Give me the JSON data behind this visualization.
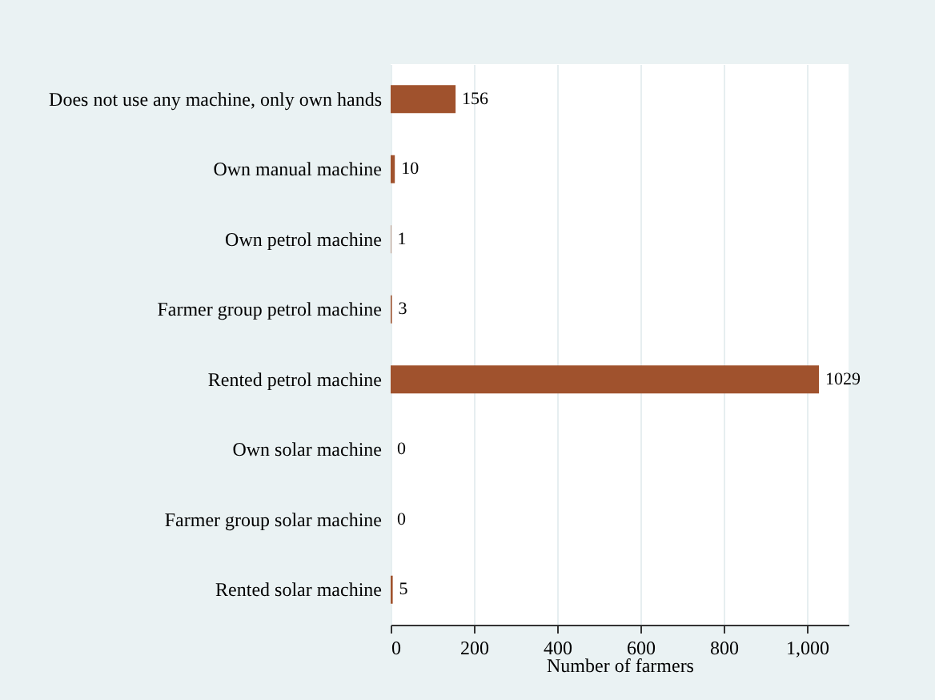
{
  "chart_data": {
    "type": "bar",
    "orientation": "horizontal",
    "categories": [
      "Does not use any machine, only own hands",
      "Own manual machine",
      "Own petrol machine",
      "Farmer group petrol machine",
      "Rented petrol machine",
      "Own solar machine",
      "Farmer group solar machine",
      "Rented solar machine"
    ],
    "values": [
      156,
      10,
      1,
      3,
      1029,
      0,
      0,
      5
    ],
    "color": "#a0522d",
    "xlabel": "Number of farmers",
    "xlim": [
      0,
      1100
    ],
    "xticks": [
      0,
      200,
      400,
      600,
      800,
      {
        "value": 1000,
        "label": "1,000"
      }
    ],
    "grid": "x",
    "data_labels": true
  }
}
